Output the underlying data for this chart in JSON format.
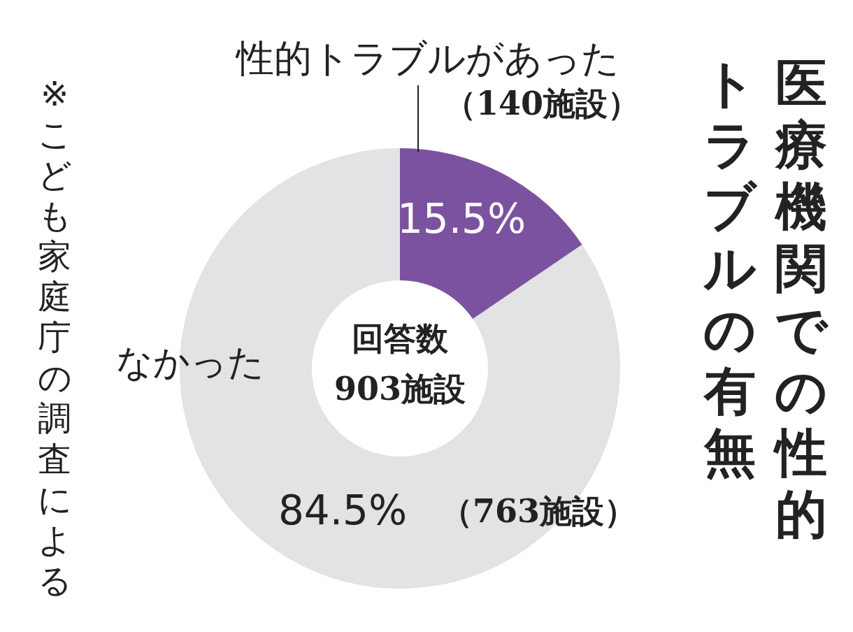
{
  "chart_data": {
    "type": "donut",
    "title": "医療機関での性的トラブルの有無",
    "categories": [
      "性的トラブルがあった",
      "なかった"
    ],
    "values": [
      15.5,
      84.5
    ],
    "colors": [
      "#7b52a0",
      "#e3e3e5"
    ],
    "value_labels": [
      "15.5%",
      "84.5%"
    ],
    "annotations": [
      "（140施設）",
      "（763施設）",
      "回答数",
      "903施設",
      "※こども家庭庁の調査による"
    ]
  }
}
